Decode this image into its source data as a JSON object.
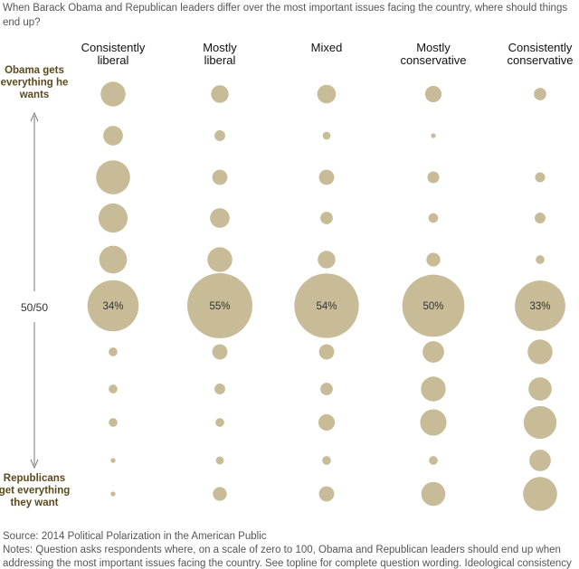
{
  "question": "When Barack Obama and Republican leaders differ over the most important issues facing the country, where should things end up?",
  "chart_data": {
    "type": "bubble-matrix",
    "columns": [
      [
        "Consistently",
        "liberal"
      ],
      [
        "Mostly",
        "liberal"
      ],
      [
        "Mixed"
      ],
      [
        "Mostly",
        "conservative"
      ],
      [
        "Consistently",
        "conservative"
      ]
    ],
    "y_axis": {
      "top_label": [
        "Obama gets",
        "everything he",
        "wants"
      ],
      "middle_label": "50/50",
      "bottom_label": [
        "Republicans",
        "get everything",
        "they want"
      ]
    },
    "scale_points": [
      100,
      90,
      80,
      70,
      60,
      50,
      40,
      30,
      20,
      10,
      0
    ],
    "series": [
      {
        "name": "Consistently liberal",
        "values": [
          8,
          5,
          15,
          11,
          10,
          34,
          1,
          1,
          1,
          0.3,
          0.3
        ],
        "labels": {
          "50": "34%"
        }
      },
      {
        "name": "Mostly liberal",
        "values": [
          4,
          1.5,
          3,
          5,
          8,
          55,
          3,
          1.5,
          1,
          0.8,
          2.5
        ],
        "labels": {
          "50": "55%"
        }
      },
      {
        "name": "Mixed",
        "values": [
          4.5,
          0.8,
          3,
          2,
          4,
          54,
          3,
          2,
          3.5,
          1,
          3
        ],
        "labels": {
          "50": "54%"
        }
      },
      {
        "name": "Mostly conservative",
        "values": [
          3.5,
          0.3,
          1.8,
          1.2,
          2.5,
          50,
          6,
          8,
          9,
          1,
          7.5
        ],
        "labels": {
          "50": "50%"
        }
      },
      {
        "name": "Consistently conservative",
        "values": [
          2,
          null,
          1.3,
          1.5,
          1,
          33,
          8,
          7,
          14,
          6,
          15
        ],
        "labels": {
          "50": "33%"
        }
      }
    ]
  },
  "source": "Source: 2014 Political Polarization in the American Public",
  "notes_line1": "Notes: Question asks respondents where, on a scale of zero to 100, Obama and Republican leaders should end up when",
  "notes_line2": "addressing the most important issues facing the country. See topline for complete question wording. Ideological consistency"
}
